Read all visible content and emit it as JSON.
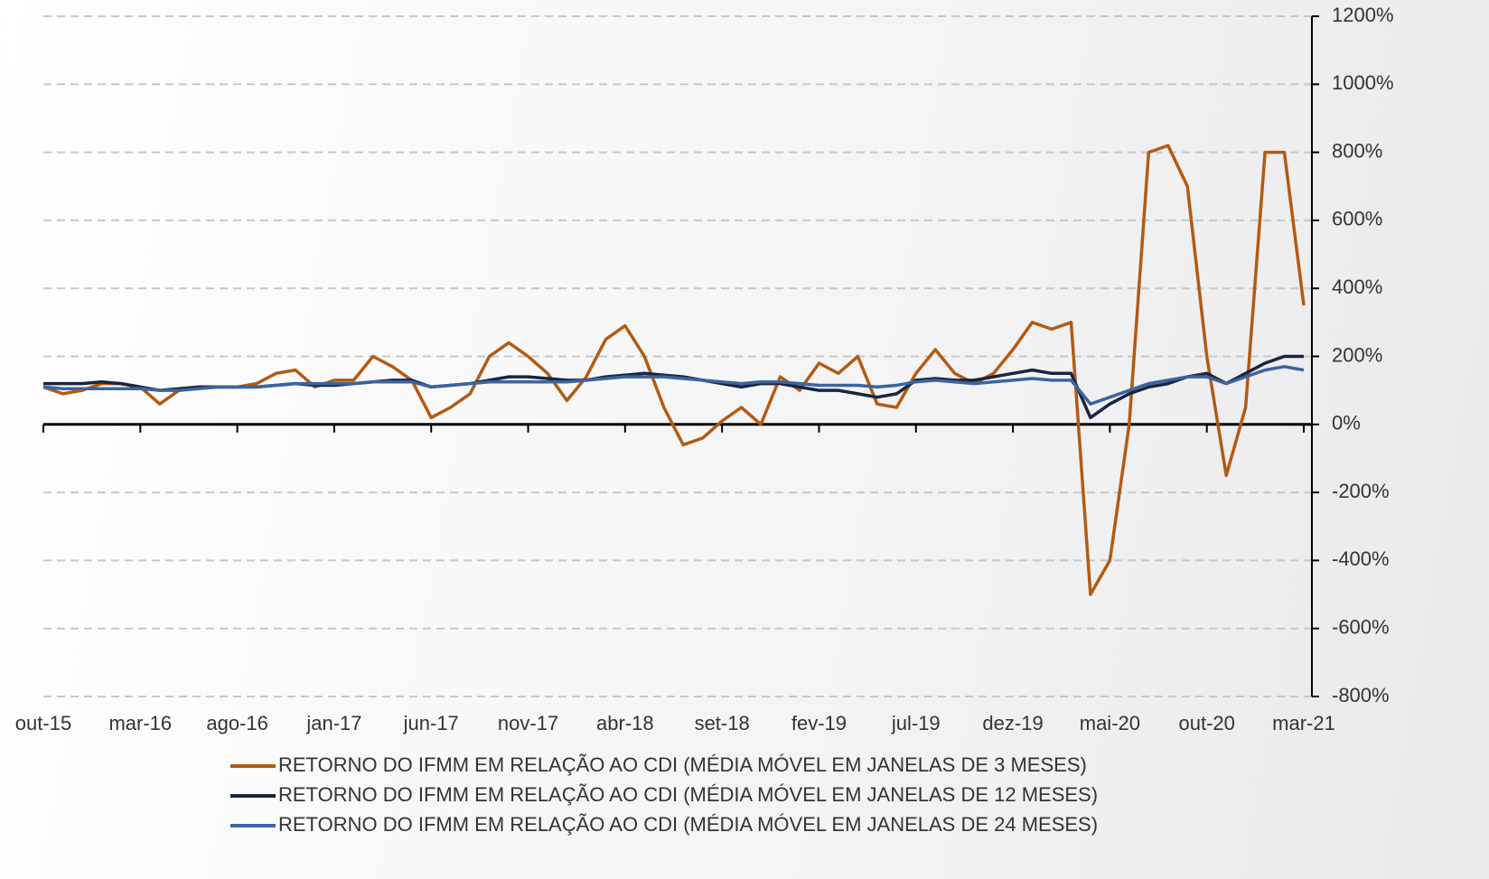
{
  "chart_data": {
    "type": "line",
    "categories": [
      "out-15",
      null,
      null,
      null,
      null,
      "mar-16",
      null,
      null,
      null,
      null,
      "ago-16",
      null,
      null,
      null,
      null,
      "jan-17",
      null,
      null,
      null,
      null,
      "jun-17",
      null,
      null,
      null,
      null,
      "nov-17",
      null,
      null,
      null,
      null,
      "abr-18",
      null,
      null,
      null,
      null,
      "set-18",
      null,
      null,
      null,
      null,
      "fev-19",
      null,
      null,
      null,
      null,
      "jul-19",
      null,
      null,
      null,
      null,
      "dez-19",
      null,
      null,
      null,
      null,
      "mai-20",
      null,
      null,
      null,
      null,
      "out-20",
      null,
      null,
      null,
      null,
      "mar-21"
    ],
    "series": [
      {
        "name": "RETORNO DO IFMM EM RELAÇÃO AO CDI (MÉDIA MÓVEL EM JANELAS DE 3 MESES)",
        "color": "#b35a12",
        "values": [
          110,
          90,
          100,
          120,
          120,
          110,
          60,
          100,
          110,
          110,
          110,
          120,
          150,
          160,
          110,
          130,
          130,
          200,
          170,
          130,
          20,
          50,
          90,
          200,
          240,
          200,
          150,
          70,
          140,
          250,
          290,
          200,
          50,
          -60,
          -40,
          10,
          50,
          0,
          140,
          100,
          180,
          150,
          200,
          60,
          50,
          150,
          220,
          150,
          120,
          150,
          220,
          300,
          280,
          300,
          -500,
          -400,
          0,
          800,
          820,
          700,
          200,
          -150,
          50,
          800,
          800,
          350
        ]
      },
      {
        "name": "RETORNO DO IFMM EM RELAÇÃO AO CDI (MÉDIA MÓVEL EM JANELAS DE 12 MESES)",
        "color": "#16263f",
        "values": [
          120,
          120,
          120,
          125,
          120,
          110,
          100,
          105,
          110,
          110,
          110,
          110,
          115,
          120,
          115,
          115,
          120,
          125,
          130,
          130,
          110,
          115,
          120,
          130,
          140,
          140,
          135,
          130,
          130,
          140,
          145,
          150,
          145,
          140,
          130,
          120,
          110,
          120,
          120,
          110,
          100,
          100,
          90,
          80,
          90,
          130,
          135,
          130,
          130,
          140,
          150,
          160,
          150,
          150,
          20,
          60,
          90,
          110,
          120,
          140,
          150,
          120,
          150,
          180,
          200,
          200
        ]
      },
      {
        "name": "RETORNO DO IFMM EM RELAÇÃO AO CDI (MÉDIA MÓVEL EM JANELAS DE 24 MESES)",
        "color": "#3b64a0",
        "values": [
          110,
          105,
          105,
          105,
          105,
          105,
          100,
          100,
          105,
          110,
          110,
          110,
          115,
          120,
          120,
          120,
          120,
          125,
          125,
          125,
          110,
          115,
          120,
          125,
          125,
          125,
          125,
          125,
          130,
          135,
          140,
          140,
          140,
          135,
          130,
          125,
          120,
          125,
          125,
          120,
          115,
          115,
          115,
          110,
          115,
          125,
          130,
          125,
          120,
          125,
          130,
          135,
          130,
          130,
          60,
          80,
          100,
          120,
          130,
          140,
          140,
          120,
          140,
          160,
          170,
          160
        ]
      }
    ],
    "ylim": [
      -800,
      1200
    ],
    "yticks": [
      {
        "value": -800,
        "label": "-800%"
      },
      {
        "value": -600,
        "label": "-600%"
      },
      {
        "value": -400,
        "label": "-400%"
      },
      {
        "value": -200,
        "label": "-200%"
      },
      {
        "value": 0,
        "label": "0%"
      },
      {
        "value": 200,
        "label": "200%"
      },
      {
        "value": 400,
        "label": "400%"
      },
      {
        "value": 600,
        "label": "600%"
      },
      {
        "value": 800,
        "label": "800%"
      },
      {
        "value": 1000,
        "label": "1000%"
      },
      {
        "value": 1200,
        "label": "1200%"
      }
    ],
    "grid": true,
    "legend": "bottom"
  }
}
